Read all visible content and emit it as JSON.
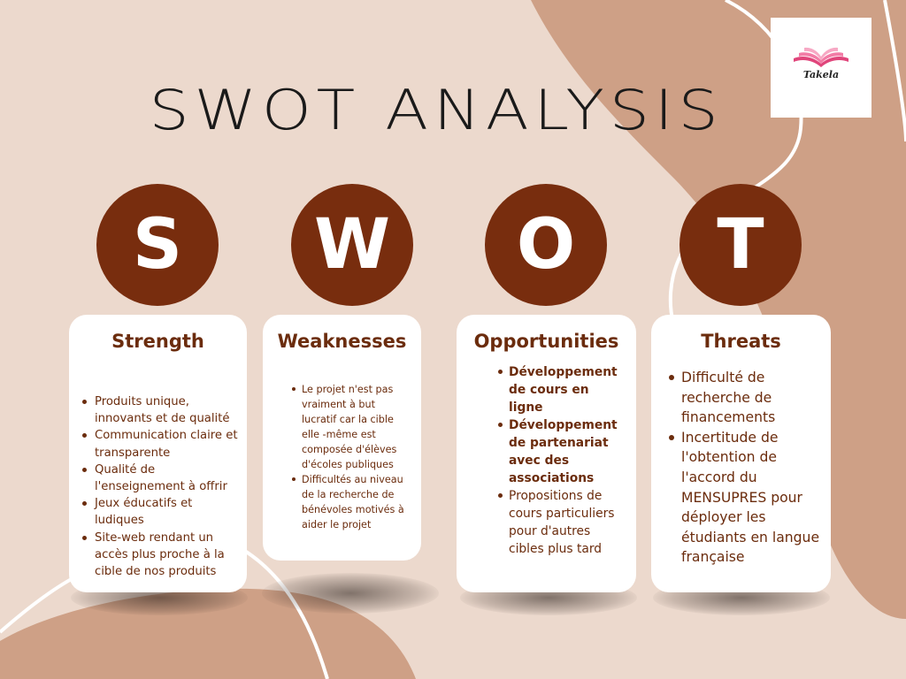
{
  "title": "SWOT ANALYSIS",
  "logo": {
    "text": "Takela"
  },
  "colors": {
    "background": "#ecd9cd",
    "blob": "#cea086",
    "accent": "#782d0e",
    "text": "#6b2c0d",
    "card": "#ffffff"
  },
  "quadrants": [
    {
      "letter": "S",
      "title": "Strength",
      "items": [
        "Produits unique, innovants et de qualité",
        "Communication claire et transparente",
        "Qualité de l'enseignement à offrir",
        "Jeux éducatifs et ludiques",
        "Site-web rendant un accès plus proche à la cible de nos produits"
      ]
    },
    {
      "letter": "W",
      "title": "Weaknesses",
      "items": [
        "Le projet n'est pas vraiment à but lucratif car la cible elle -même est composée d'élèves d'écoles publiques",
        "Difficultés au niveau de la recherche de bénévoles motivés à aider le projet"
      ]
    },
    {
      "letter": "O",
      "title": "Opportunities",
      "items": [
        "Développement de cours en ligne",
        "Développement de partenariat avec des associations",
        "Propositions de cours particuliers pour d'autres cibles plus tard"
      ]
    },
    {
      "letter": "T",
      "title": "Threats",
      "items": [
        "Difficulté de recherche de financements",
        "Incertitude de l'obtention de l'accord du MENSUPRES pour déployer les étudiants en langue française"
      ]
    }
  ]
}
